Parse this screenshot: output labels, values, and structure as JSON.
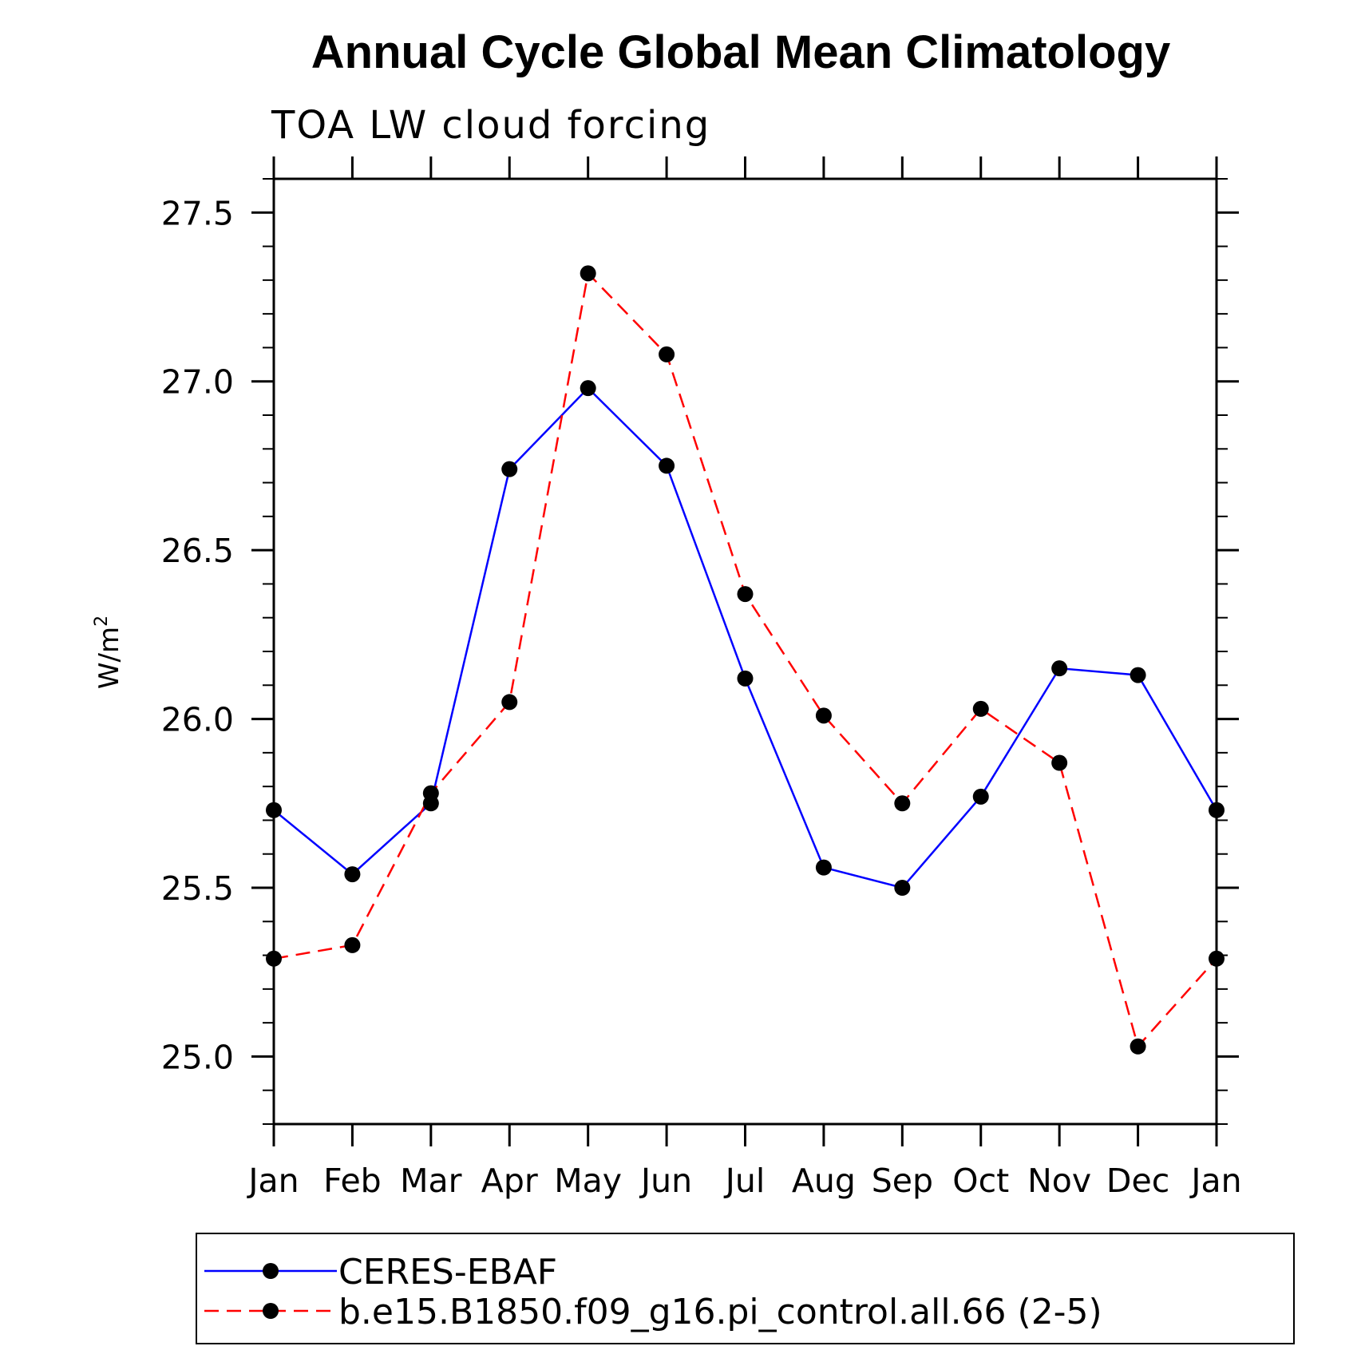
{
  "chart_data": {
    "type": "line",
    "title": "Annual Cycle Global Mean Climatology",
    "subtitle": "TOA LW cloud forcing",
    "ylabel": "W/m",
    "ylabel_sup": "2",
    "categories": [
      "Jan",
      "Feb",
      "Mar",
      "Apr",
      "May",
      "Jun",
      "Jul",
      "Aug",
      "Sep",
      "Oct",
      "Nov",
      "Dec",
      "Jan"
    ],
    "ylim": [
      24.8,
      27.6
    ],
    "yticks": [
      25.0,
      25.5,
      26.0,
      26.5,
      27.0,
      27.5
    ],
    "ytick_labels": [
      "25.0",
      "25.5",
      "26.0",
      "26.5",
      "27.0",
      "27.5"
    ],
    "grid": false,
    "legend_position": "bottom",
    "series": [
      {
        "name": "CERES-EBAF",
        "color": "#0000ff",
        "dash": "solid",
        "values": [
          25.73,
          25.54,
          25.75,
          26.74,
          26.98,
          26.75,
          26.12,
          25.56,
          25.5,
          25.77,
          26.15,
          26.13,
          25.73
        ]
      },
      {
        "name": "b.e15.B1850.f09_g16.pi_control.all.66 (2-5)",
        "color": "#ff0000",
        "dash": "dashed",
        "values": [
          25.29,
          25.33,
          25.78,
          26.05,
          27.32,
          27.08,
          26.37,
          26.01,
          25.75,
          26.03,
          25.87,
          25.03,
          25.29
        ]
      }
    ]
  }
}
